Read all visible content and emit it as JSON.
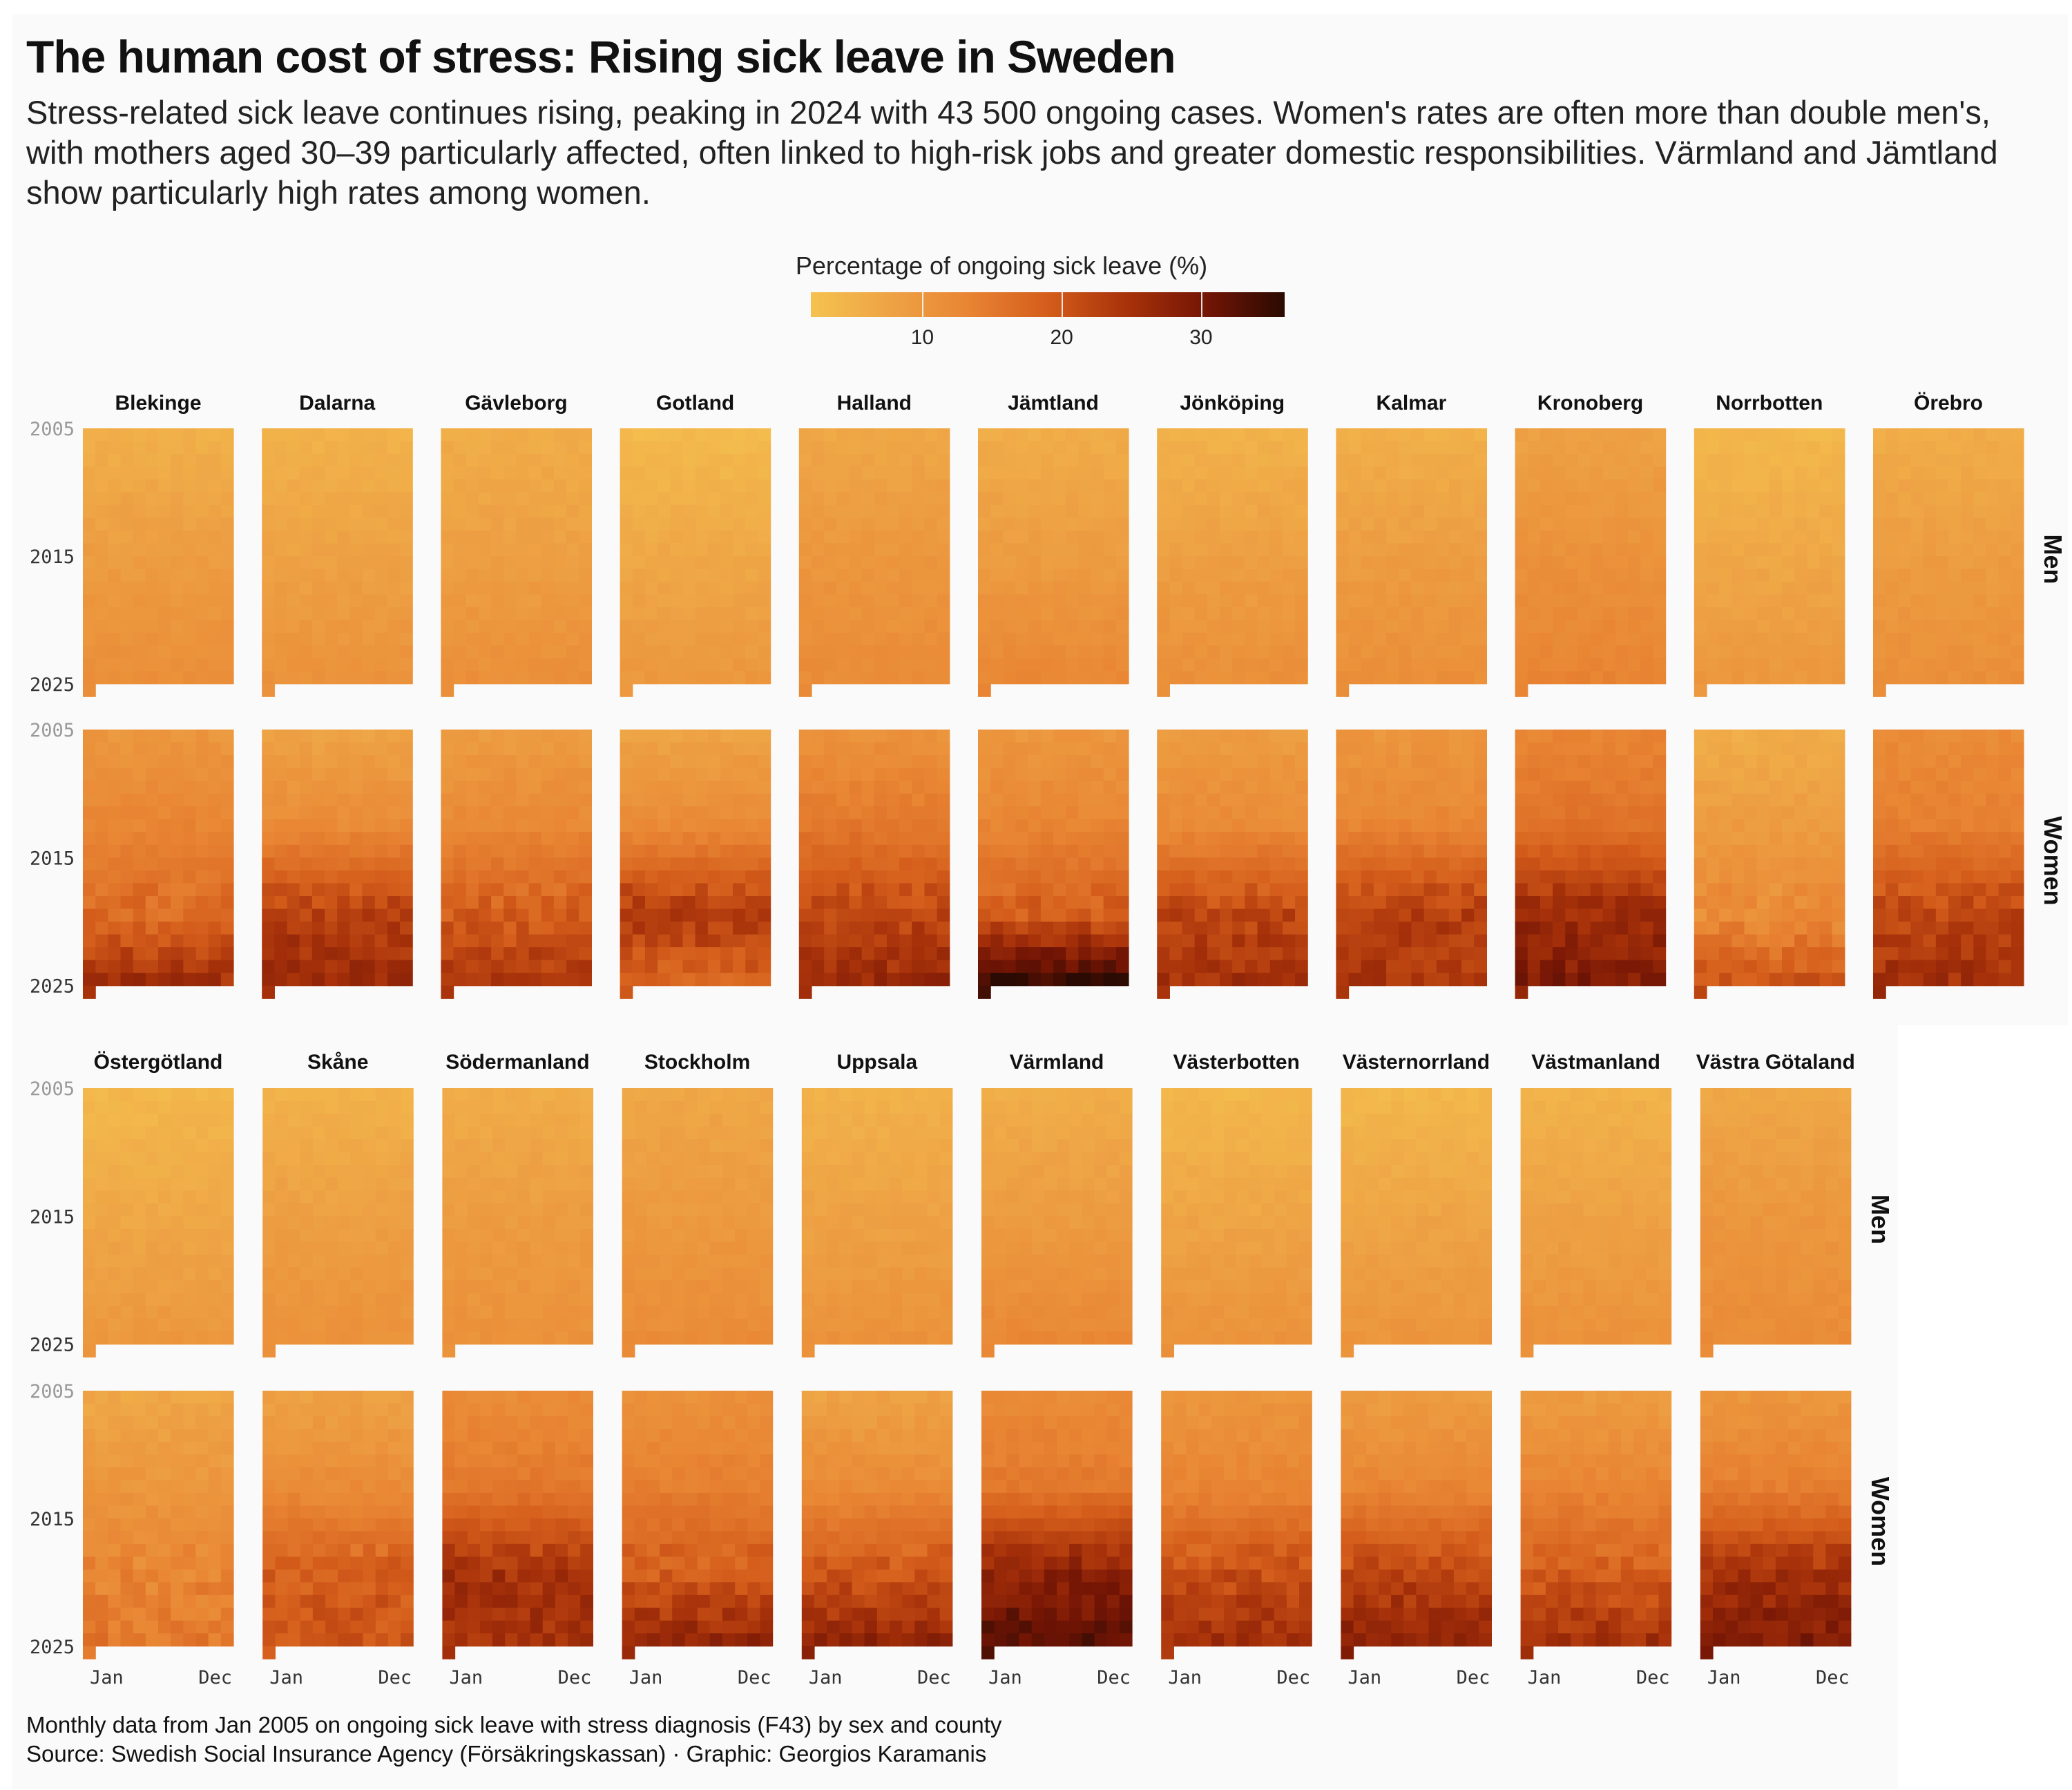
{
  "title": "The human cost of stress: Rising sick leave in Sweden",
  "subtitle": "Stress-related sick leave continues rising, peaking in 2024 with 43 500 ongoing cases. Women's rates are often more than double men's, with mothers aged 30–39 particularly affected, often linked to high-risk jobs and greater domestic responsibilities. Värmland and Jämtland show particularly high rates among women.",
  "caption_line1": "Monthly data from Jan 2005 on ongoing sick leave with stress diagnosis (F43) by sex and county",
  "caption_line2": "Source: Swedish Social Insurance Agency (Försäkringskassan) · Graphic: Georgios Karamanis",
  "colors": {
    "background": "#fafafa",
    "scale": [
      "#f5c24f",
      "#eea345",
      "#e88433",
      "#d45d1b",
      "#a8320a",
      "#741505",
      "#2a0a02"
    ]
  },
  "chart_data": {
    "type": "heatmap",
    "x": "month",
    "y": "year",
    "value_unit": "%",
    "legend": {
      "title": "Percentage of ongoing sick leave (%)",
      "ticks": [
        10,
        20,
        30
      ],
      "tick_labels": [
        "10",
        "20",
        "30"
      ],
      "range": [
        2,
        36
      ]
    },
    "x_tick_labels": [
      "Jan",
      "Dec"
    ],
    "y_tick_labels": [
      "2005",
      "2015",
      "2025"
    ],
    "year_range": [
      2005,
      2025
    ],
    "sexes": [
      "Men",
      "Women"
    ],
    "counties": [
      {
        "name": "Blekinge",
        "men": [
          5.5,
          9,
          11.5
        ],
        "women": [
          10,
          13,
          17,
          25
        ]
      },
      {
        "name": "Dalarna",
        "men": [
          5,
          8,
          11
        ],
        "women": [
          8,
          12,
          23,
          26
        ]
      },
      {
        "name": "Gävleborg",
        "men": [
          6,
          8.5,
          11.5
        ],
        "women": [
          9,
          12.5,
          19,
          24
        ]
      },
      {
        "name": "Gotland",
        "men": [
          3.5,
          7,
          10
        ],
        "women": [
          8,
          12,
          24,
          18
        ]
      },
      {
        "name": "Halland",
        "men": [
          7,
          10,
          12
        ],
        "women": [
          11,
          15,
          22,
          26
        ]
      },
      {
        "name": "Jämtland",
        "men": [
          6,
          9,
          13
        ],
        "women": [
          10,
          13,
          19,
          35
        ]
      },
      {
        "name": "Jönköping",
        "men": [
          5,
          8.5,
          11.5
        ],
        "women": [
          9,
          12,
          22,
          25
        ]
      },
      {
        "name": "Kalmar",
        "men": [
          5.5,
          9,
          11.5
        ],
        "women": [
          10,
          13,
          23,
          24
        ]
      },
      {
        "name": "Kronoberg",
        "men": [
          8,
          11,
          13.5
        ],
        "women": [
          13,
          16,
          26,
          29
        ]
      },
      {
        "name": "Norrbotten",
        "men": [
          4,
          7,
          10
        ],
        "women": [
          6,
          9,
          12,
          20
        ]
      },
      {
        "name": "Örebro",
        "men": [
          6,
          9,
          11.5
        ],
        "women": [
          12,
          14,
          22,
          25
        ]
      },
      {
        "name": "Östergötland",
        "men": [
          4,
          7,
          10
        ],
        "women": [
          7,
          10,
          13,
          15
        ]
      },
      {
        "name": "Skåne",
        "men": [
          5,
          8.5,
          11
        ],
        "women": [
          8,
          12,
          19,
          20
        ]
      },
      {
        "name": "Södermanland",
        "men": [
          6,
          9,
          11
        ],
        "women": [
          12,
          15,
          25,
          25
        ]
      },
      {
        "name": "Stockholm",
        "men": [
          7,
          9.5,
          12
        ],
        "women": [
          11,
          14,
          19,
          27
        ]
      },
      {
        "name": "Uppsala",
        "men": [
          5,
          8,
          11
        ],
        "women": [
          8,
          12,
          20,
          27
        ]
      },
      {
        "name": "Värmland",
        "men": [
          6,
          9,
          13
        ],
        "women": [
          12,
          15,
          28,
          32
        ]
      },
      {
        "name": "Västerbotten",
        "men": [
          4,
          7.5,
          11
        ],
        "women": [
          10,
          13,
          21,
          25
        ]
      },
      {
        "name": "Västernorrland",
        "men": [
          4,
          7.5,
          10.5
        ],
        "women": [
          9,
          13,
          22,
          28
        ]
      },
      {
        "name": "Västmanland",
        "men": [
          5,
          8,
          11
        ],
        "women": [
          9,
          13,
          19,
          25
        ]
      },
      {
        "name": "Västra Götaland",
        "men": [
          7,
          10,
          12
        ],
        "women": [
          10,
          14,
          25,
          29
        ]
      }
    ]
  }
}
